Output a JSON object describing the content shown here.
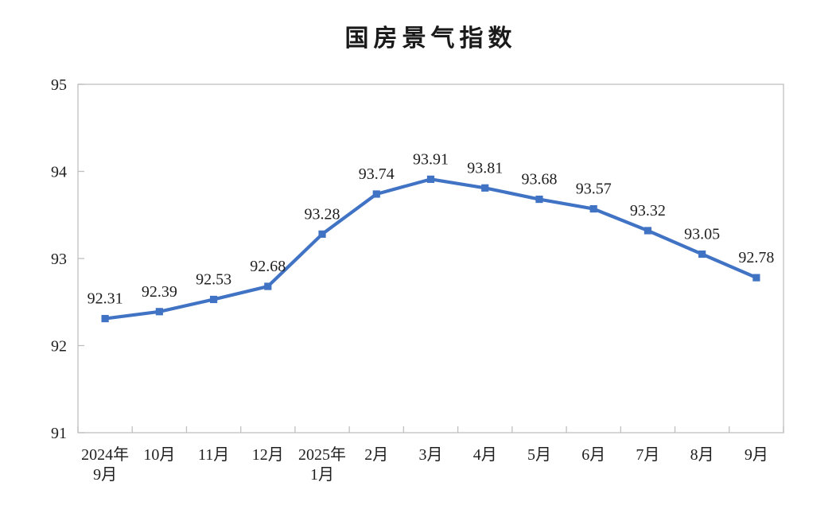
{
  "page": {
    "background": "#ffffff"
  },
  "chart_data": {
    "type": "line",
    "title": "国房景气指数",
    "categories": [
      "2024年\n9月",
      "10月",
      "11月",
      "12月",
      "2025年\n1月",
      "2月",
      "3月",
      "4月",
      "5月",
      "6月",
      "7月",
      "8月",
      "9月"
    ],
    "series": [
      {
        "name": "国房景气指数",
        "values": [
          92.31,
          92.39,
          92.53,
          92.68,
          93.28,
          93.74,
          93.91,
          93.81,
          93.68,
          93.57,
          93.32,
          93.05,
          92.78
        ]
      }
    ],
    "data_labels": [
      "92.31",
      "92.39",
      "92.53",
      "92.68",
      "93.28",
      "93.74",
      "93.91",
      "93.81",
      "93.68",
      "93.57",
      "93.32",
      "93.05",
      "92.78"
    ],
    "xlabel": "",
    "ylabel": "",
    "ylim": [
      91,
      95
    ],
    "yticks": [
      "95",
      "94",
      "93",
      "92",
      "91"
    ],
    "ytick_values": [
      95,
      94,
      93,
      92,
      91
    ],
    "grid": false,
    "legend": "none",
    "style": {
      "line_color": "#4173C4",
      "marker": "square",
      "axis_color": "#BFBFBF",
      "text_color": "#1F1F1F",
      "title_color": "#1A1A1A"
    }
  }
}
